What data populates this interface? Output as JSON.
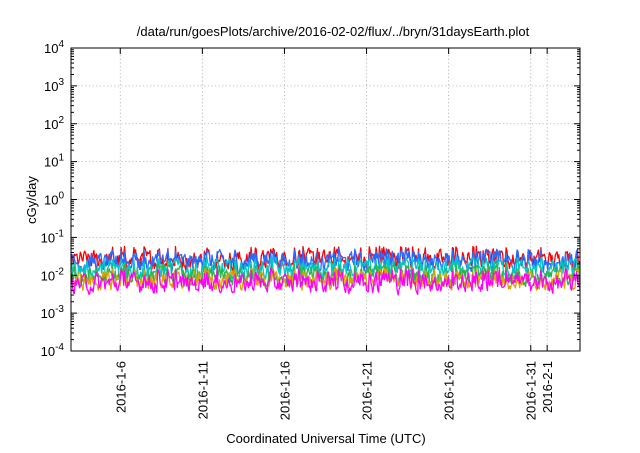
{
  "chart_data": {
    "type": "line",
    "title": "/data/run/goesPlots/archive/2016-02-02/flux/../bryn/31daysEarth.plot",
    "xlabel": "Coordinated Universal Time (UTC)",
    "ylabel": "cGy/day",
    "yscale": "log",
    "ylim": [
      0.0001,
      10000
    ],
    "y_ticks": [
      {
        "base": "10",
        "exp": "-4",
        "value": 0.0001
      },
      {
        "base": "10",
        "exp": "-3",
        "value": 0.001
      },
      {
        "base": "10",
        "exp": "-2",
        "value": 0.01
      },
      {
        "base": "10",
        "exp": "-1",
        "value": 0.1
      },
      {
        "base": "10",
        "exp": "0",
        "value": 1
      },
      {
        "base": "10",
        "exp": "1",
        "value": 10
      },
      {
        "base": "10",
        "exp": "2",
        "value": 100
      },
      {
        "base": "10",
        "exp": "3",
        "value": 1000
      },
      {
        "base": "10",
        "exp": "4",
        "value": 10000
      }
    ],
    "xlim": [
      "2016-01-03",
      "2016-02-03"
    ],
    "x_ticks": [
      "2016-1-6",
      "2016-1-11",
      "2016-1-16",
      "2016-1-21",
      "2016-1-26",
      "2016-1-31",
      "2016-2-1"
    ],
    "grid": true,
    "legend": "none",
    "series": [
      {
        "color": "#ff0000",
        "typical": 0.025,
        "low": 0.013,
        "high": 0.06
      },
      {
        "color": "#2a6bff",
        "typical": 0.022,
        "low": 0.011,
        "high": 0.05
      },
      {
        "color": "#00c8c8",
        "typical": 0.014,
        "low": 0.008,
        "high": 0.03
      },
      {
        "color": "#2db34a",
        "typical": 0.009,
        "low": 0.005,
        "high": 0.02
      },
      {
        "color": "#d9a300",
        "typical": 0.007,
        "low": 0.004,
        "high": 0.015
      },
      {
        "color": "#ff00ff",
        "typical": 0.006,
        "low": 0.003,
        "high": 0.015
      }
    ]
  }
}
